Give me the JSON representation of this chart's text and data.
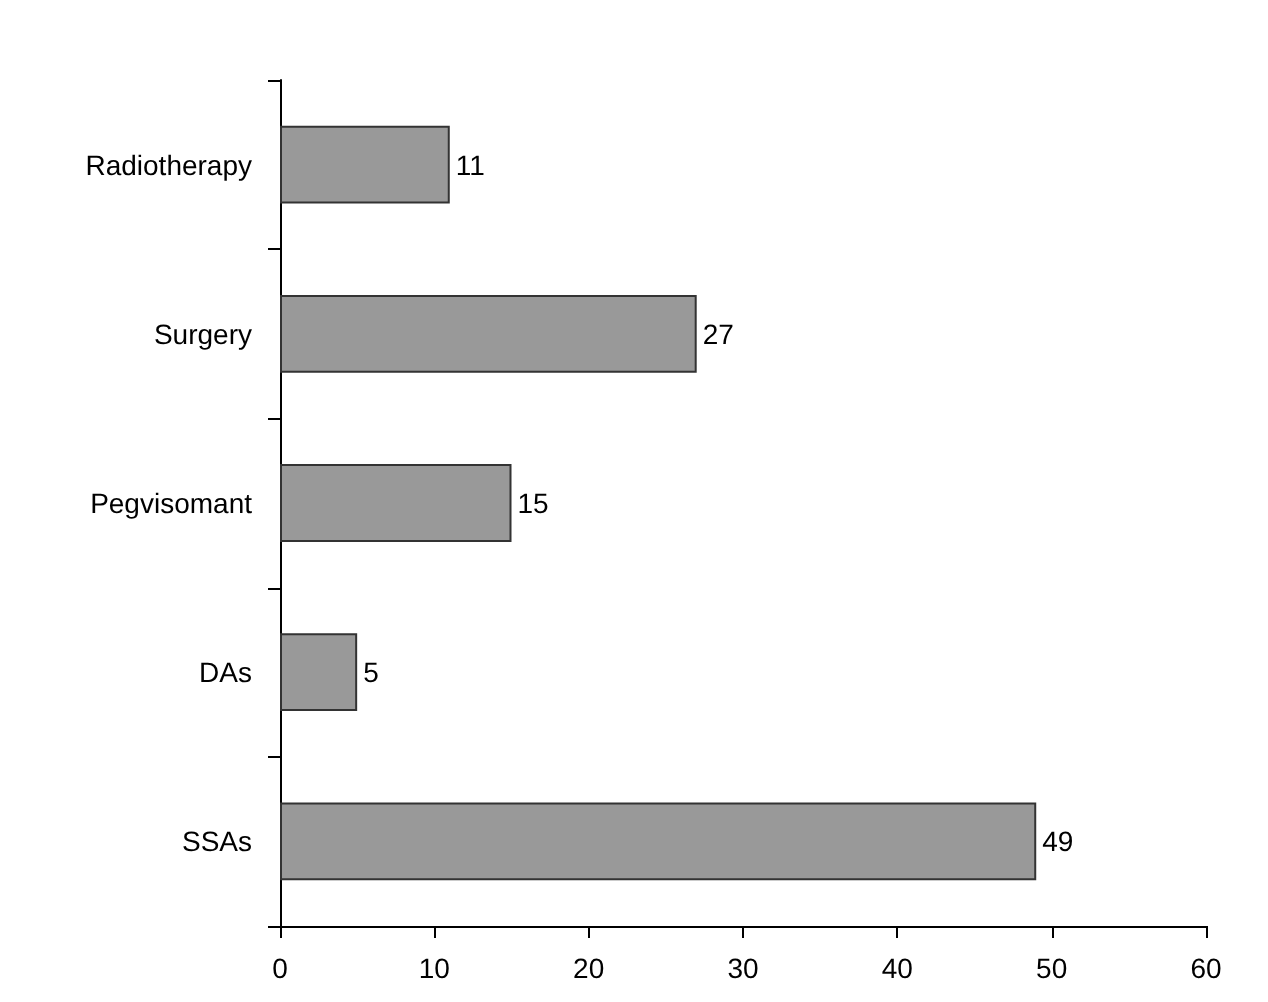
{
  "chart_data": {
    "type": "bar",
    "orientation": "horizontal",
    "categories": [
      "Radiotherapy",
      "Surgery",
      "Pegvisomant",
      "DAs",
      "SSAs"
    ],
    "values": [
      11,
      27,
      15,
      5,
      49
    ],
    "color": "#999999",
    "data_labels": true,
    "xlim": [
      0,
      60
    ],
    "xticks": [
      0,
      10,
      20,
      30,
      40,
      50,
      60
    ],
    "grid": false
  }
}
